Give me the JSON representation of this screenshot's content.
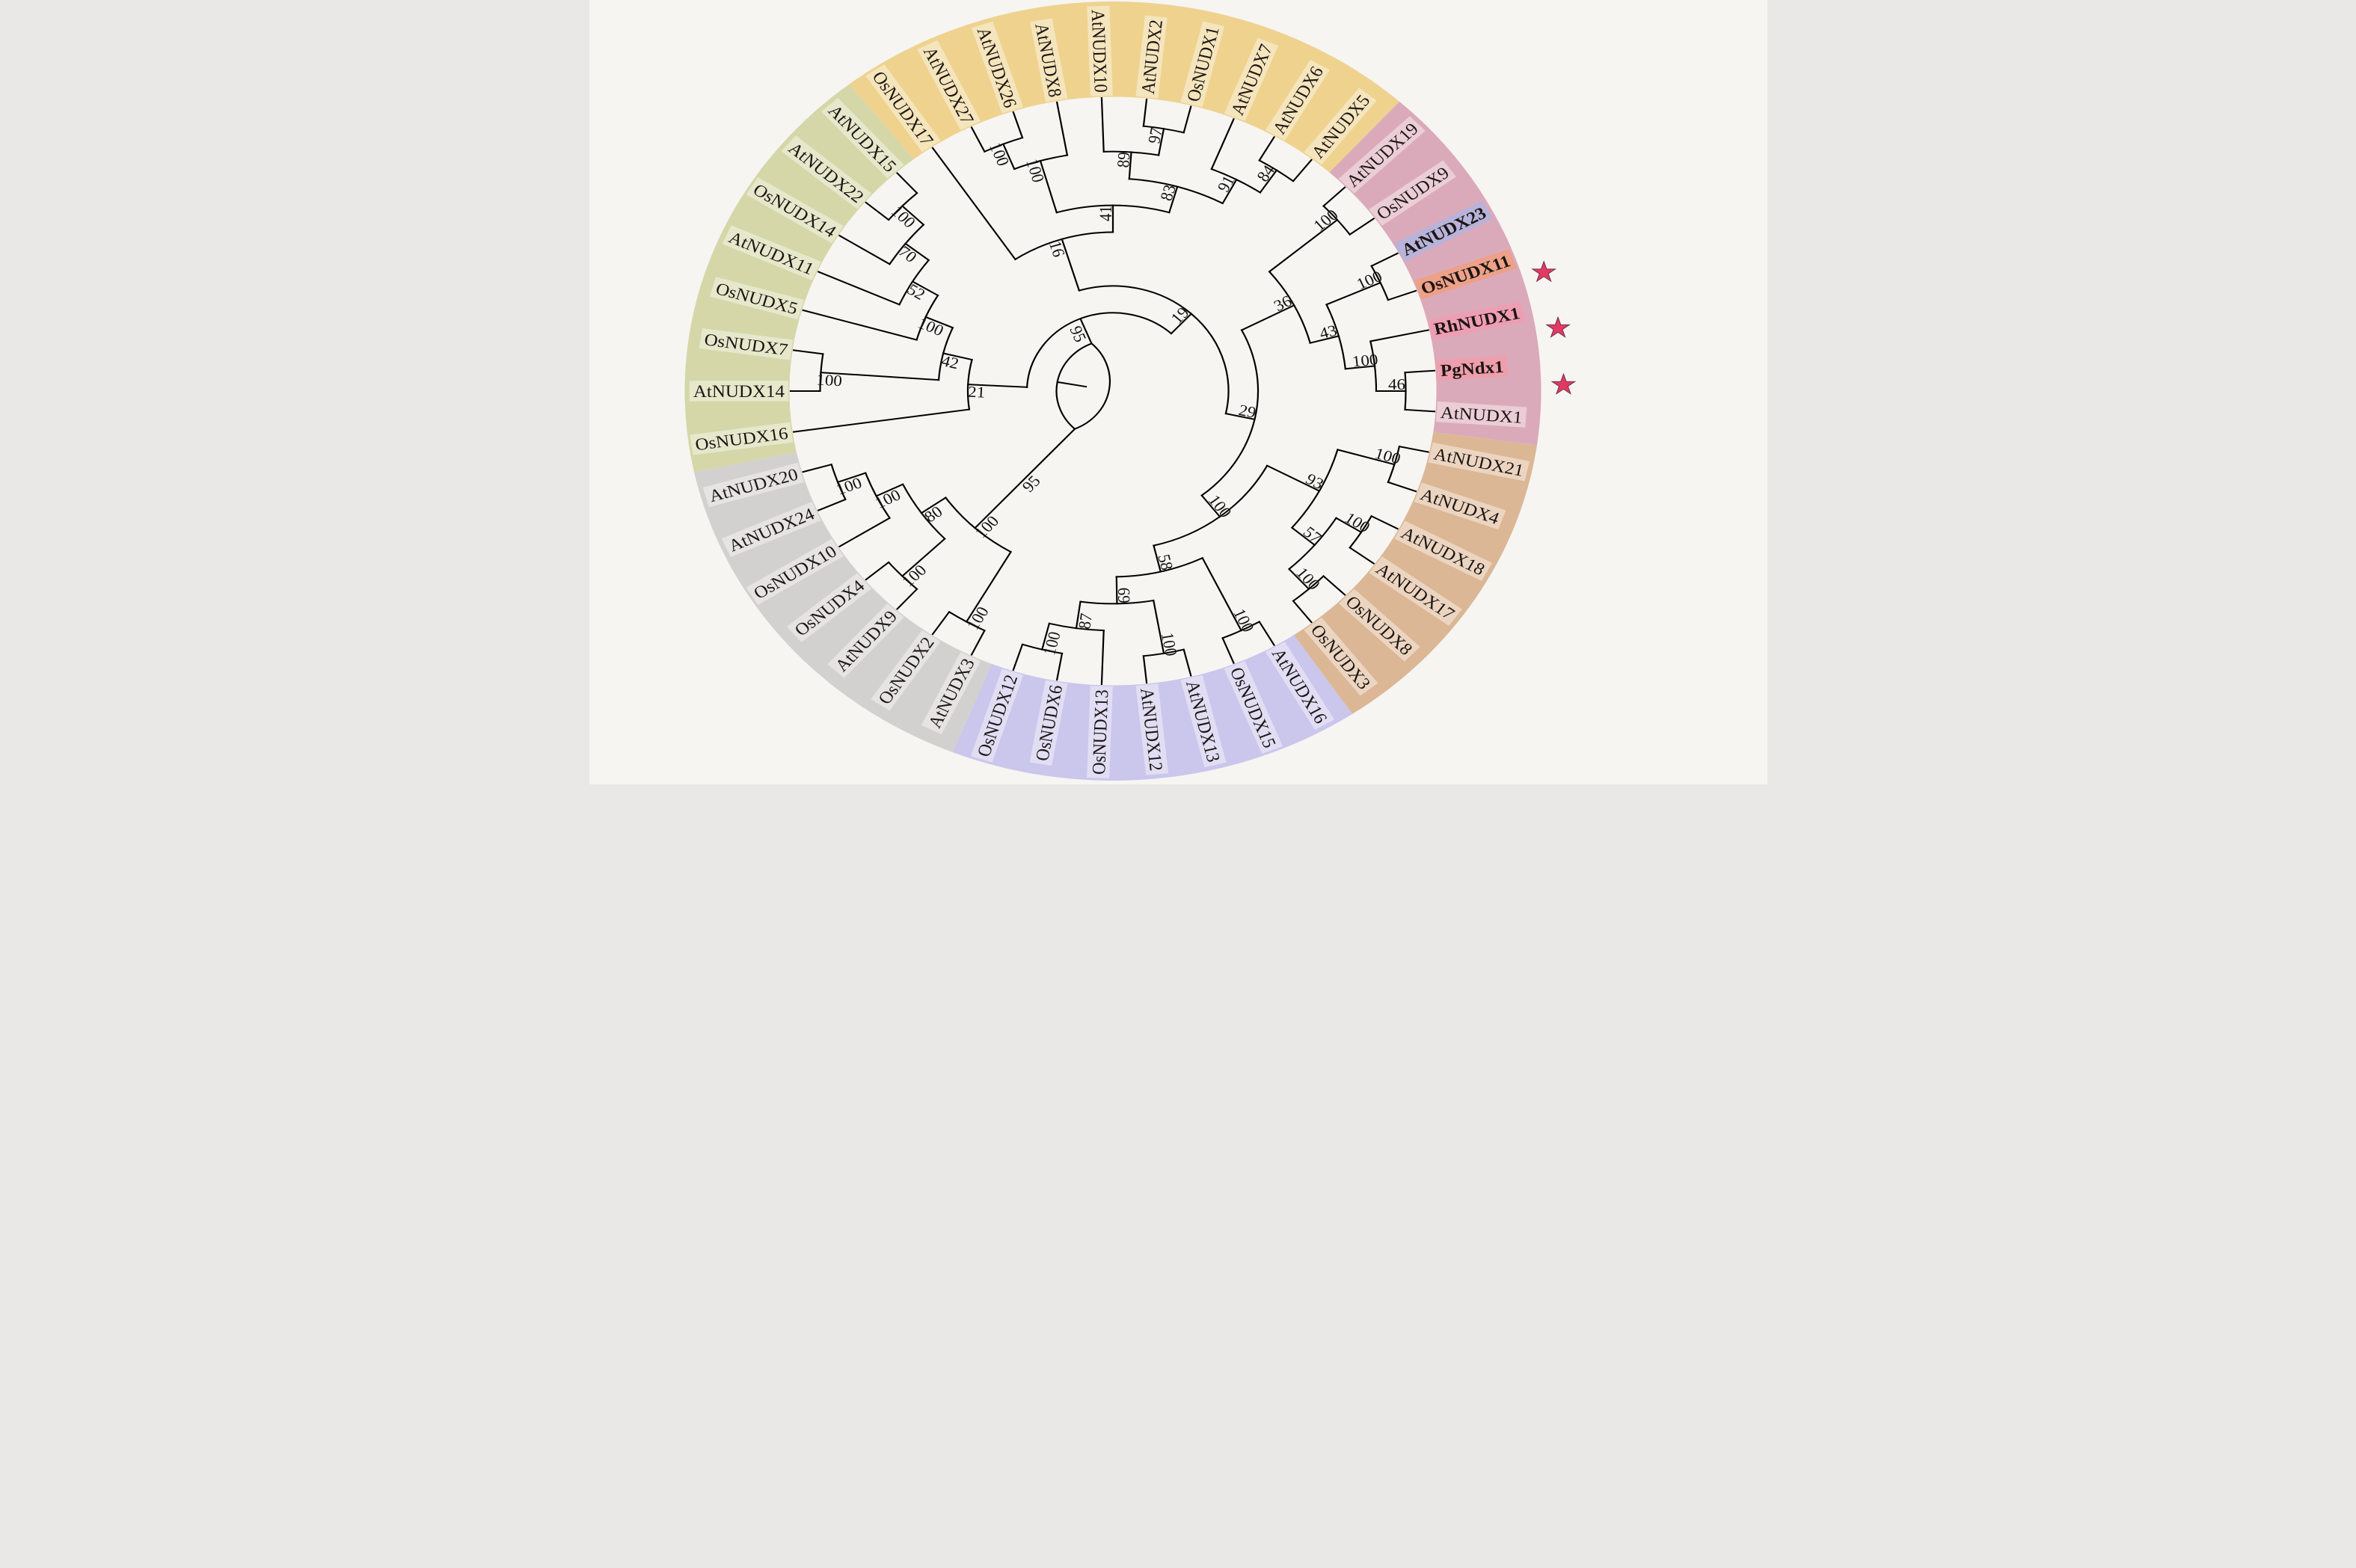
{
  "figure": {
    "description": "Circular phylogenetic tree (cladogram) of NUDX proteins from Arabidopsis (At), rice (Os), rose (Rh) and Pelargonium (Pg), with six colored clade bands, bootstrap support values at nodes, and red stars marking OsNUDX11, RhNUDX1 and PgNdx1.",
    "background": "#f6f5f2"
  },
  "style": {
    "branch_color": "#000000",
    "branch_width": 4.4,
    "support_color": "#121212",
    "label_color": "#1c1512",
    "label_chip": "rgba(255,255,255,0.42)",
    "star_color": "#e23a63",
    "star_outline": "#6d3248"
  },
  "clades": [
    {
      "id": "green",
      "color": "#d5d7a8"
    },
    {
      "id": "orange",
      "color": "#eed28e"
    },
    {
      "id": "pink",
      "color": "#dbaaba"
    },
    {
      "id": "brown",
      "color": "#dcb795"
    },
    {
      "id": "purple",
      "color": "#cbc6ec"
    },
    {
      "id": "gray",
      "color": "#d2d1cf"
    }
  ],
  "leaf_order": [
    {
      "name": "OsNUDX16",
      "clade": "green"
    },
    {
      "name": "AtNUDX14",
      "clade": "green"
    },
    {
      "name": "OsNUDX7",
      "clade": "green"
    },
    {
      "name": "OsNUDX5",
      "clade": "green"
    },
    {
      "name": "AtNUDX11",
      "clade": "green"
    },
    {
      "name": "OsNUDX14",
      "clade": "green"
    },
    {
      "name": "AtNUDX22",
      "clade": "green"
    },
    {
      "name": "AtNUDX15",
      "clade": "green"
    },
    {
      "name": "OsNUDX17",
      "clade": "orange"
    },
    {
      "name": "AtNUDX27",
      "clade": "orange"
    },
    {
      "name": "AtNUDX26",
      "clade": "orange"
    },
    {
      "name": "AtNUDX8",
      "clade": "orange"
    },
    {
      "name": "AtNUDX10",
      "clade": "orange"
    },
    {
      "name": "AtNUDX2",
      "clade": "orange"
    },
    {
      "name": "OsNUDX1",
      "clade": "orange"
    },
    {
      "name": "AtNUDX7",
      "clade": "orange"
    },
    {
      "name": "AtNUDX6",
      "clade": "orange"
    },
    {
      "name": "AtNUDX5",
      "clade": "orange"
    },
    {
      "name": "AtNUDX19",
      "clade": "pink"
    },
    {
      "name": "OsNUDX9",
      "clade": "pink"
    },
    {
      "name": "AtNUDX23",
      "clade": "pink",
      "bold": true,
      "color": "#3c66cf",
      "chip": "rgba(165,185,235,0.65)"
    },
    {
      "name": "OsNUDX11",
      "clade": "pink",
      "bold": true,
      "color": "#c2224a",
      "chip": "rgba(244,157,115,0.70)",
      "star": true
    },
    {
      "name": "RhNUDX1",
      "clade": "pink",
      "bold": true,
      "color": "#d02525",
      "chip": "rgba(246,152,178,0.70)",
      "star": true
    },
    {
      "name": "PgNdx1",
      "clade": "pink",
      "bold": true,
      "color": "#d82028",
      "chip": "rgba(246,152,168,0.70)",
      "star": true
    },
    {
      "name": "AtNUDX1",
      "clade": "pink"
    },
    {
      "name": "AtNUDX21",
      "clade": "brown"
    },
    {
      "name": "AtNUDX4",
      "clade": "brown"
    },
    {
      "name": "AtNUDX18",
      "clade": "brown"
    },
    {
      "name": "AtNUDX17",
      "clade": "brown"
    },
    {
      "name": "OsNUDX8",
      "clade": "brown"
    },
    {
      "name": "OsNUDX3",
      "clade": "brown"
    },
    {
      "name": "AtNUDX16",
      "clade": "purple"
    },
    {
      "name": "OsNUDX15",
      "clade": "purple"
    },
    {
      "name": "AtNUDX13",
      "clade": "purple"
    },
    {
      "name": "AtNUDX12",
      "clade": "purple"
    },
    {
      "name": "OsNUDX13",
      "clade": "purple"
    },
    {
      "name": "OsNUDX6",
      "clade": "purple"
    },
    {
      "name": "OsNUDX12",
      "clade": "purple"
    },
    {
      "name": "AtNUDX3",
      "clade": "gray"
    },
    {
      "name": "OsNUDX2",
      "clade": "gray"
    },
    {
      "name": "AtNUDX9",
      "clade": "gray"
    },
    {
      "name": "OsNUDX4",
      "clade": "gray"
    },
    {
      "name": "OsNUDX10",
      "clade": "gray"
    },
    {
      "name": "AtNUDX24",
      "clade": "gray"
    },
    {
      "name": "AtNUDX20",
      "clade": "gray"
    }
  ],
  "newick": "(((OsNUDX16,((AtNUDX14,OsNUDX7)100,(OsNUDX5,(AtNUDX11,(OsNUDX14,(AtNUDX22,AtNUDX15)100)70)52)100)42)21,((OsNUDX17,(((AtNUDX27,AtNUDX26)100,AtNUDX8)100,((AtNUDX10,(AtNUDX2,OsNUDX1)97)89,(AtNUDX7,(AtNUDX6,AtNUDX5)84)91)83)41)16,(((AtNUDX19,OsNUDX9)100,((AtNUDX23,OsNUDX11)100,(RhNUDX1,(PgNdx1,AtNUDX1)46)100)43)36,(((AtNUDX21,AtNUDX4)100,((AtNUDX18,AtNUDX17)100,(OsNUDX8,OsNUDX3)100)57)93,((AtNUDX16,OsNUDX15)100,((AtNUDX13,AtNUDX12)100,(OsNUDX13,(OsNUDX6,OsNUDX12)100)87)69)58)100)29)19)95,((AtNUDX3,OsNUDX2)100,((AtNUDX9,OsNUDX4)100,(OsNUDX10,(AtNUDX24,AtNUDX20)100)100)80)100)95;",
  "tree": {
    "c": [
      {
        "e": "95",
        "c": [
          {
            "s": "21",
            "c": [
              {
                "n": "OsNUDX16"
              },
              {
                "s": "42",
                "c": [
                  {
                    "s": "100",
                    "c": [
                      {
                        "n": "AtNUDX14"
                      },
                      {
                        "n": "OsNUDX7"
                      }
                    ]
                  },
                  {
                    "s": "100",
                    "c": [
                      {
                        "n": "OsNUDX5"
                      },
                      {
                        "s": "52",
                        "c": [
                          {
                            "n": "AtNUDX11"
                          },
                          {
                            "s": "70",
                            "c": [
                              {
                                "n": "OsNUDX14"
                              },
                              {
                                "s": "100",
                                "c": [
                                  {
                                    "n": "AtNUDX22"
                                  },
                                  {
                                    "n": "AtNUDX15"
                                  }
                                ]
                              }
                            ]
                          }
                        ]
                      }
                    ]
                  }
                ]
              }
            ]
          },
          {
            "s": "19",
            "c": [
              {
                "s": "16",
                "c": [
                  {
                    "n": "OsNUDX17"
                  },
                  {
                    "s": "41",
                    "c": [
                      {
                        "s": "100",
                        "c": [
                          {
                            "s": "100",
                            "c": [
                              {
                                "n": "AtNUDX27"
                              },
                              {
                                "n": "AtNUDX26"
                              }
                            ]
                          },
                          {
                            "n": "AtNUDX8"
                          }
                        ]
                      },
                      {
                        "s": "83",
                        "c": [
                          {
                            "s": "89",
                            "c": [
                              {
                                "n": "AtNUDX10"
                              },
                              {
                                "s": "97",
                                "c": [
                                  {
                                    "n": "AtNUDX2"
                                  },
                                  {
                                    "n": "OsNUDX1"
                                  }
                                ]
                              }
                            ]
                          },
                          {
                            "s": "91",
                            "c": [
                              {
                                "n": "AtNUDX7"
                              },
                              {
                                "s": "84",
                                "c": [
                                  {
                                    "n": "AtNUDX6"
                                  },
                                  {
                                    "n": "AtNUDX5"
                                  }
                                ]
                              }
                            ]
                          }
                        ]
                      }
                    ]
                  }
                ]
              },
              {
                "s": "29",
                "c": [
                  {
                    "s": "36",
                    "c": [
                      {
                        "s": "100",
                        "c": [
                          {
                            "n": "AtNUDX19"
                          },
                          {
                            "n": "OsNUDX9"
                          }
                        ]
                      },
                      {
                        "s": "43",
                        "c": [
                          {
                            "s": "100",
                            "c": [
                              {
                                "n": "AtNUDX23"
                              },
                              {
                                "n": "OsNUDX11"
                              }
                            ]
                          },
                          {
                            "s": "100",
                            "c": [
                              {
                                "n": "RhNUDX1"
                              },
                              {
                                "s": "46",
                                "c": [
                                  {
                                    "n": "PgNdx1"
                                  },
                                  {
                                    "n": "AtNUDX1"
                                  }
                                ]
                              }
                            ]
                          }
                        ]
                      }
                    ]
                  },
                  {
                    "s": "100",
                    "c": [
                      {
                        "s": "93",
                        "c": [
                          {
                            "s": "100",
                            "c": [
                              {
                                "n": "AtNUDX21"
                              },
                              {
                                "n": "AtNUDX4"
                              }
                            ]
                          },
                          {
                            "s": "57",
                            "c": [
                              {
                                "s": "100",
                                "c": [
                                  {
                                    "n": "AtNUDX18"
                                  },
                                  {
                                    "n": "AtNUDX17"
                                  }
                                ]
                              },
                              {
                                "s": "100",
                                "c": [
                                  {
                                    "n": "OsNUDX8"
                                  },
                                  {
                                    "n": "OsNUDX3"
                                  }
                                ]
                              }
                            ]
                          }
                        ]
                      },
                      {
                        "s": "58",
                        "c": [
                          {
                            "s": "100",
                            "c": [
                              {
                                "n": "AtNUDX16"
                              },
                              {
                                "n": "OsNUDX15"
                              }
                            ]
                          },
                          {
                            "s": "69",
                            "c": [
                              {
                                "s": "100",
                                "c": [
                                  {
                                    "n": "AtNUDX13"
                                  },
                                  {
                                    "n": "AtNUDX12"
                                  }
                                ]
                              },
                              {
                                "s": "87",
                                "c": [
                                  {
                                    "n": "OsNUDX13"
                                  },
                                  {
                                    "s": "100",
                                    "c": [
                                      {
                                        "n": "OsNUDX6"
                                      },
                                      {
                                        "n": "OsNUDX12"
                                      }
                                    ]
                                  }
                                ]
                              }
                            ]
                          }
                        ]
                      }
                    ]
                  }
                ]
              }
            ]
          }
        ]
      },
      {
        "s": "100",
        "e": "95",
        "c": [
          {
            "s": "100",
            "c": [
              {
                "n": "AtNUDX3"
              },
              {
                "n": "OsNUDX2"
              }
            ]
          },
          {
            "s": "80",
            "c": [
              {
                "s": "100",
                "c": [
                  {
                    "n": "AtNUDX9"
                  },
                  {
                    "n": "OsNUDX4"
                  }
                ]
              },
              {
                "s": "100",
                "c": [
                  {
                    "n": "OsNUDX10"
                  },
                  {
                    "s": "100",
                    "c": [
                      {
                        "n": "AtNUDX24"
                      },
                      {
                        "n": "AtNUDX20"
                      }
                    ]
                  }
                ]
              }
            ]
          }
        ]
      }
    ]
  }
}
